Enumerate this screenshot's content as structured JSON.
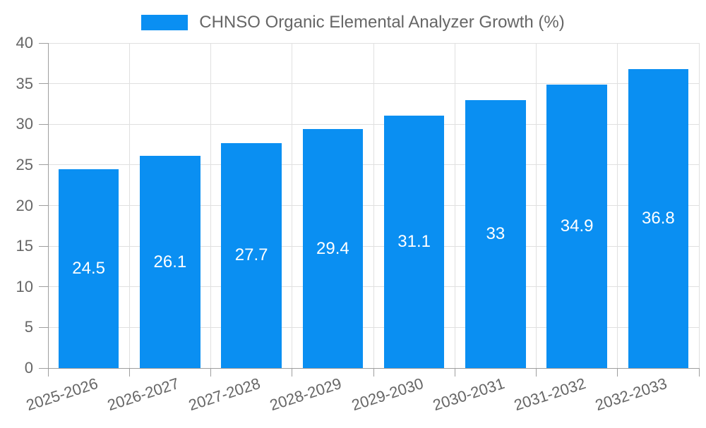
{
  "legend": {
    "label": "CHNSO Organic Elemental Analyzer Growth (%)"
  },
  "chart_data": {
    "type": "bar",
    "title": "CHNSO Organic Elemental Analyzer Growth (%)",
    "categories": [
      "2025-2026",
      "2026-2027",
      "2027-2028",
      "2028-2029",
      "2029-2030",
      "2030-2031",
      "2031-2032",
      "2032-2033"
    ],
    "values": [
      24.5,
      26.1,
      27.7,
      29.4,
      31.1,
      33,
      34.9,
      36.8
    ],
    "xlabel": "",
    "ylabel": "",
    "ylim": [
      0,
      40
    ],
    "ytick_step": 5,
    "yticks": [
      0,
      5,
      10,
      15,
      20,
      25,
      30,
      35,
      40
    ],
    "grid": true,
    "legend_position": "top-center",
    "bar_color": "#0a8ff2",
    "value_label_color": "#ffffff",
    "axis_text_color": "#666666",
    "grid_color": "#e0e0e0",
    "axis_line_color": "#9e9e9e",
    "x_label_rotation_deg": -18
  }
}
